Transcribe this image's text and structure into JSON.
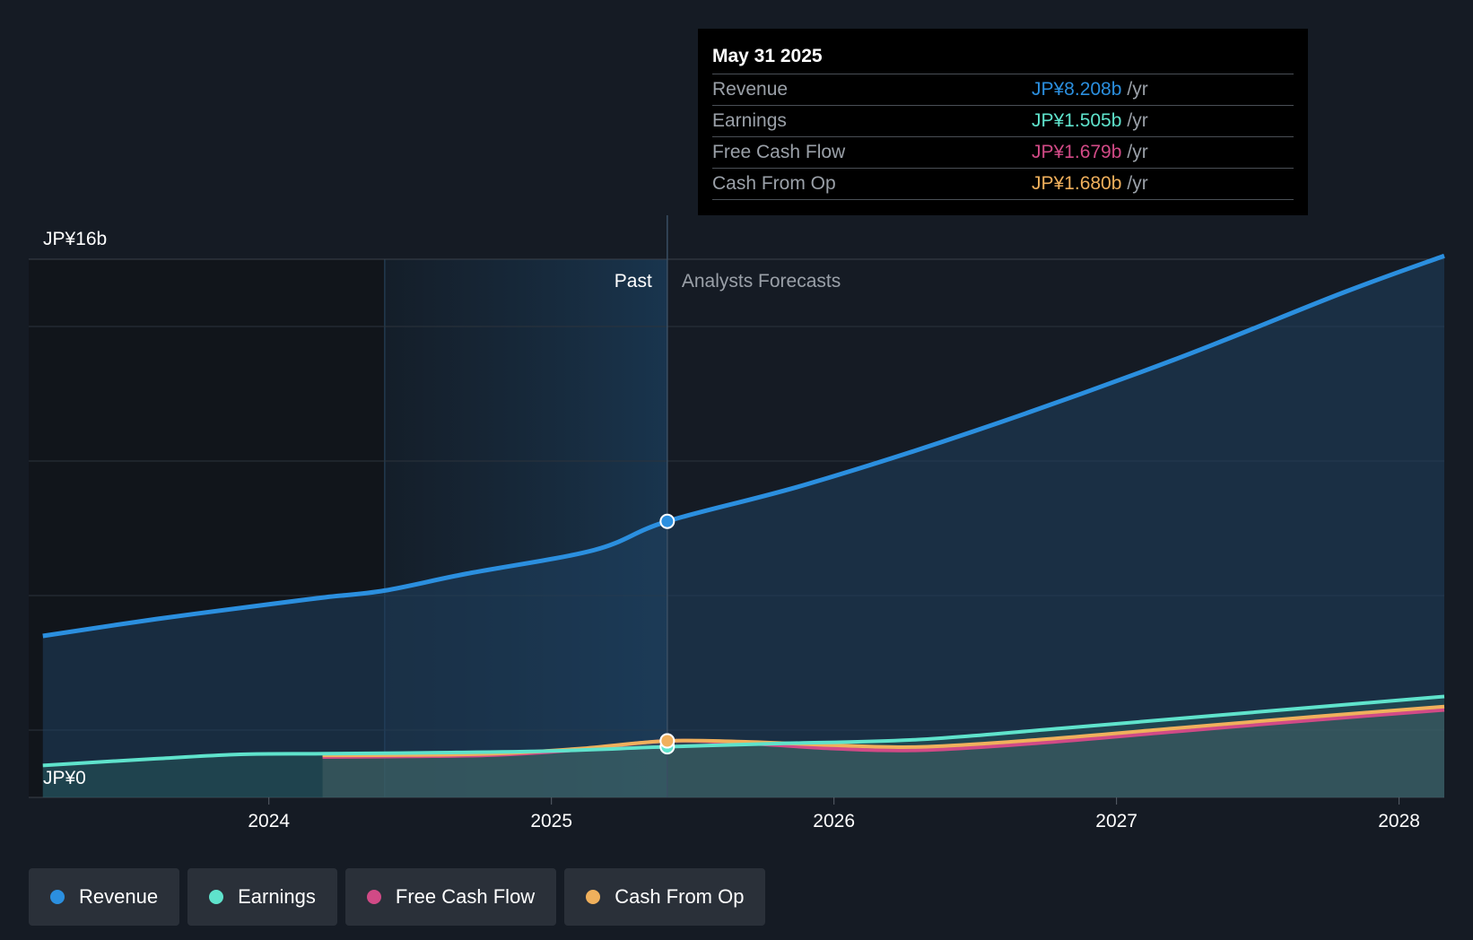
{
  "chart_data": {
    "type": "area",
    "y_axis": {
      "top_label": "JP¥16b",
      "bottom_label": "JP¥0",
      "ylim": [
        0,
        16
      ]
    },
    "x_axis": {
      "ticks": [
        "2024",
        "2025",
        "2026",
        "2027",
        "2028"
      ],
      "tick_values": [
        2024,
        2025,
        2026,
        2027,
        2028
      ],
      "xlim": [
        2023.15,
        2028.16
      ]
    },
    "past_label": "Past",
    "forecast_label": "Analysts Forecasts",
    "divider_x": 2025.41,
    "past_region_start": 2024.41,
    "series": [
      {
        "name": "Revenue",
        "color": "#2b8fdf",
        "points": [
          [
            2023.2,
            4.8
          ],
          [
            2023.6,
            5.3
          ],
          [
            2024.0,
            5.74
          ],
          [
            2024.2,
            5.95
          ],
          [
            2024.41,
            6.15
          ],
          [
            2024.7,
            6.65
          ],
          [
            2025.15,
            7.35
          ],
          [
            2025.41,
            8.208
          ],
          [
            2025.9,
            9.3
          ],
          [
            2026.5,
            10.9
          ],
          [
            2027.2,
            13.0
          ],
          [
            2027.8,
            15.0
          ],
          [
            2028.16,
            16.1
          ]
        ]
      },
      {
        "name": "Earnings",
        "color": "#5fe3cc",
        "points": [
          [
            2023.2,
            0.95
          ],
          [
            2023.6,
            1.15
          ],
          [
            2023.9,
            1.28
          ],
          [
            2024.2,
            1.3
          ],
          [
            2024.6,
            1.33
          ],
          [
            2025.0,
            1.38
          ],
          [
            2025.41,
            1.505
          ],
          [
            2025.8,
            1.6
          ],
          [
            2026.3,
            1.72
          ],
          [
            2026.8,
            2.05
          ],
          [
            2027.3,
            2.4
          ],
          [
            2027.8,
            2.75
          ],
          [
            2028.16,
            3.0
          ]
        ]
      },
      {
        "name": "Free Cash Flow",
        "color": "#d14a86",
        "points": [
          [
            2024.19,
            1.2
          ],
          [
            2024.5,
            1.22
          ],
          [
            2024.8,
            1.26
          ],
          [
            2025.1,
            1.42
          ],
          [
            2025.41,
            1.679
          ],
          [
            2025.7,
            1.6
          ],
          [
            2026.0,
            1.45
          ],
          [
            2026.3,
            1.4
          ],
          [
            2026.7,
            1.6
          ],
          [
            2027.2,
            1.95
          ],
          [
            2027.7,
            2.3
          ],
          [
            2028.16,
            2.6
          ]
        ]
      },
      {
        "name": "Cash From Op",
        "color": "#f0b05c",
        "points": [
          [
            2024.19,
            1.25
          ],
          [
            2024.5,
            1.26
          ],
          [
            2024.8,
            1.3
          ],
          [
            2025.1,
            1.45
          ],
          [
            2025.41,
            1.68
          ],
          [
            2025.7,
            1.65
          ],
          [
            2026.0,
            1.55
          ],
          [
            2026.3,
            1.5
          ],
          [
            2026.7,
            1.7
          ],
          [
            2027.2,
            2.05
          ],
          [
            2027.7,
            2.4
          ],
          [
            2028.16,
            2.7
          ]
        ]
      }
    ],
    "highlight_x": 2025.41
  },
  "tooltip": {
    "date": "May 31 2025",
    "rows": [
      {
        "label": "Revenue",
        "value": "JP¥8.208b",
        "unit": "/yr",
        "color": "#2b8fdf"
      },
      {
        "label": "Earnings",
        "value": "JP¥1.505b",
        "unit": "/yr",
        "color": "#5fe3cc"
      },
      {
        "label": "Free Cash Flow",
        "value": "JP¥1.679b",
        "unit": "/yr",
        "color": "#d14a86"
      },
      {
        "label": "Cash From Op",
        "value": "JP¥1.680b",
        "unit": "/yr",
        "color": "#f0b05c"
      }
    ]
  },
  "legend": [
    {
      "label": "Revenue",
      "color": "#2b8fdf"
    },
    {
      "label": "Earnings",
      "color": "#5fe3cc"
    },
    {
      "label": "Free Cash Flow",
      "color": "#d14a86"
    },
    {
      "label": "Cash From Op",
      "color": "#f0b05c"
    }
  ]
}
